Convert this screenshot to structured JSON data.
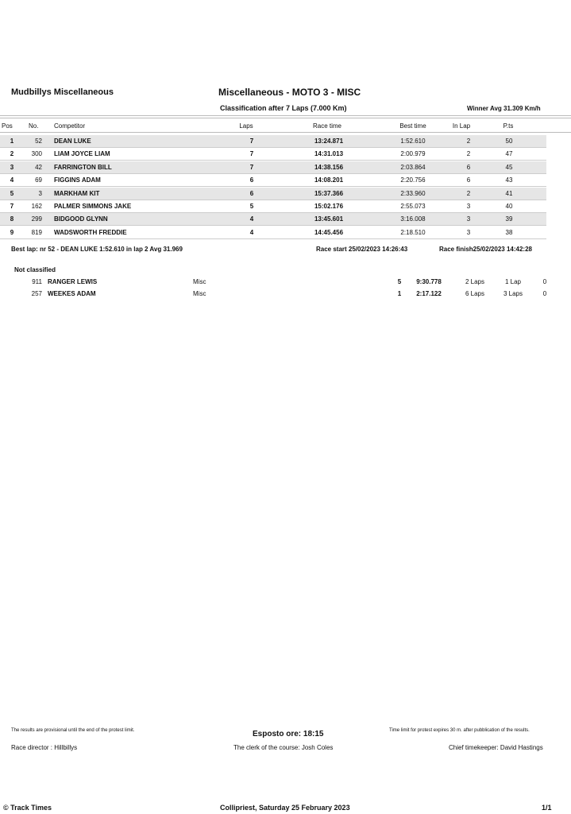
{
  "header": {
    "organizer": "Mudbillys Miscellaneous",
    "event_title": "Miscellaneous - MOTO 3 - MISC",
    "subtitle": "Classification after 7 Laps (7.000 Km)",
    "winner_avg": "Winner Avg 31.309 Km/h"
  },
  "columns": {
    "pos": "Pos",
    "no": "No.",
    "competitor": "Competitor",
    "laps": "Laps",
    "race_time": "Race time",
    "best_time": "Best time",
    "in_lap": "In Lap",
    "pts": "P.ts"
  },
  "rows": [
    {
      "pos": "1",
      "no": "52",
      "competitor": "DEAN LUKE",
      "laps": "7",
      "race_time": "13:24.871",
      "best_time": "1:52.610",
      "in_lap": "2",
      "pts": "50"
    },
    {
      "pos": "2",
      "no": "300",
      "competitor": "LIAM JOYCE LIAM",
      "laps": "7",
      "race_time": "14:31.013",
      "best_time": "2:00.979",
      "in_lap": "2",
      "pts": "47"
    },
    {
      "pos": "3",
      "no": "42",
      "competitor": "FARRINGTON BILL",
      "laps": "7",
      "race_time": "14:38.156",
      "best_time": "2:03.864",
      "in_lap": "6",
      "pts": "45"
    },
    {
      "pos": "4",
      "no": "69",
      "competitor": "FIGGINS ADAM",
      "laps": "6",
      "race_time": "14:08.201",
      "best_time": "2:20.756",
      "in_lap": "6",
      "pts": "43"
    },
    {
      "pos": "5",
      "no": "3",
      "competitor": "MARKHAM KIT",
      "laps": "6",
      "race_time": "15:37.366",
      "best_time": "2:33.960",
      "in_lap": "2",
      "pts": "41"
    },
    {
      "pos": "7",
      "no": "162",
      "competitor": "PALMER SIMMONS JAKE",
      "laps": "5",
      "race_time": "15:02.176",
      "best_time": "2:55.073",
      "in_lap": "3",
      "pts": "40"
    },
    {
      "pos": "8",
      "no": "299",
      "competitor": "BIDGOOD GLYNN",
      "laps": "4",
      "race_time": "13:45.601",
      "best_time": "3:16.008",
      "in_lap": "3",
      "pts": "39"
    },
    {
      "pos": "9",
      "no": "819",
      "competitor": "WADSWORTH FREDDIE",
      "laps": "4",
      "race_time": "14:45.456",
      "best_time": "2:18.510",
      "in_lap": "3",
      "pts": "38"
    }
  ],
  "summary": {
    "best_lap": "Best lap: nr 52 - DEAN LUKE 1:52.610 in lap 2 Avg 31.969",
    "race_start": "Race start 25/02/2023 14:26:43",
    "race_finish": "Race finish25/02/2023 14:42:28"
  },
  "not_classified": {
    "title": "Not classified",
    "rows": [
      {
        "no": "911",
        "competitor": "RANGER LEWIS",
        "class": "Misc",
        "laps": "5",
        "time": "9:30.778",
        "c1": "2 Laps",
        "c2": "1 Lap",
        "c3": "0"
      },
      {
        "no": "257",
        "competitor": "WEEKES ADAM",
        "class": "Misc",
        "laps": "1",
        "time": "2:17.122",
        "c1": "6 Laps",
        "c2": "3 Laps",
        "c3": "0"
      }
    ]
  },
  "footer": {
    "provisional": "The results are provisional until the end of the protest limit.",
    "posted": "Esposto ore: 18:15",
    "protest": "Time limit for protest expires 30 m. after pubblication of the results.",
    "race_director": "Race director : Hillbillys",
    "clerk": "The clerk of the course:  Josh Coles",
    "timekeeper": "Chief timekeeper: David Hastings",
    "copyright": "© Track Times",
    "place_date": "Collipriest, Saturday 25 February 2023",
    "page": "1/1"
  }
}
